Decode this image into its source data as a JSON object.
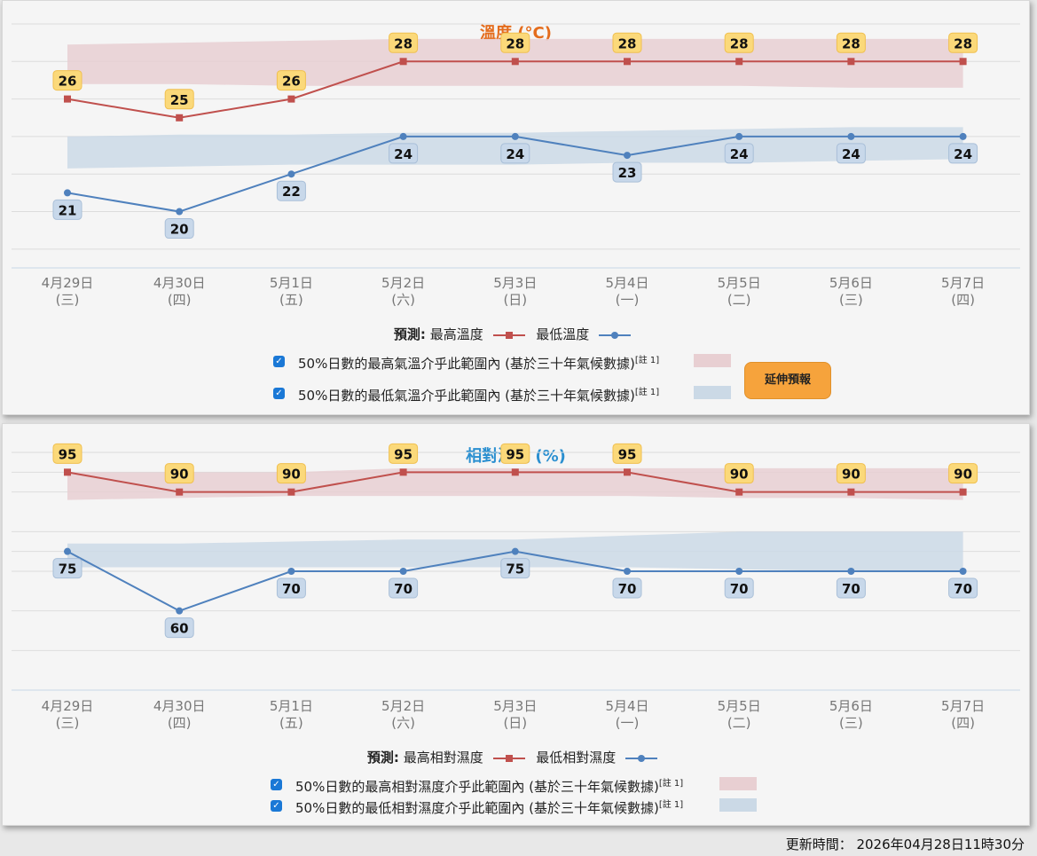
{
  "temperature": {
    "title": "溫度 (°C)",
    "legend": {
      "prefix": "預測:",
      "max_label": "最高溫度",
      "min_label": "最低溫度"
    },
    "notes": [
      {
        "text": "50%日數的最高氣溫介乎此範圍內 (基於三十年氣候數據)",
        "sup": "[註 1]"
      },
      {
        "text": "50%日數的最低氣溫介乎此範圍內 (基於三十年氣候數據)",
        "sup": "[註 1]"
      }
    ],
    "button_label": "延伸預報"
  },
  "humidity": {
    "title": "相對濕度 (%)",
    "legend": {
      "prefix": "預測:",
      "max_label": "最高相對濕度",
      "min_label": "最低相對濕度"
    },
    "notes": [
      {
        "text": "50%日數的最高相對濕度介乎此範圍內 (基於三十年氣候數據)",
        "sup": "[註 1]"
      },
      {
        "text": "50%日數的最低相對濕度介乎此範圍內 (基於三十年氣候數據)",
        "sup": "[註 1]"
      }
    ]
  },
  "colors": {
    "max": "#c0504d",
    "min": "#4f81bd",
    "max_band": "#e8cfd2",
    "min_band": "#cbd9e6",
    "max_label_bg": "#fbd97a",
    "min_label_bg": "#c8d8ea"
  },
  "updated": "更新時間： 2026年04月28日11時30分",
  "chart_data": [
    {
      "type": "line",
      "title": "溫度 (°C)",
      "categories": [
        "4月29日",
        "4月30日",
        "5月1日",
        "5月2日",
        "5月3日",
        "5月4日",
        "5月5日",
        "5月6日",
        "5月7日"
      ],
      "weekdays": [
        "(三)",
        "(四)",
        "(五)",
        "(六)",
        "(日)",
        "(一)",
        "(二)",
        "(三)",
        "(四)"
      ],
      "ylim": [
        17,
        30
      ],
      "grid": true,
      "series": [
        {
          "name": "最高溫度",
          "values": [
            26,
            25,
            26,
            28,
            28,
            28,
            28,
            28,
            28
          ]
        },
        {
          "name": "最低溫度",
          "values": [
            21,
            20,
            22,
            24,
            24,
            23,
            24,
            24,
            24
          ]
        }
      ],
      "bands": [
        {
          "upper": [
            28.9,
            29.0,
            29.1,
            29.2,
            29.2,
            29.2,
            29.2,
            29.2,
            29.2
          ],
          "lower": [
            26.8,
            26.8,
            26.7,
            26.7,
            26.7,
            26.7,
            26.7,
            26.6,
            26.6
          ]
        },
        {
          "upper": [
            24.0,
            24.1,
            24.1,
            24.2,
            24.2,
            24.3,
            24.4,
            24.5,
            24.5
          ],
          "lower": [
            22.3,
            22.4,
            22.5,
            22.5,
            22.5,
            22.6,
            22.6,
            22.7,
            22.8
          ]
        }
      ]
    },
    {
      "type": "line",
      "title": "相對濕度 (%)",
      "categories": [
        "4月29日",
        "4月30日",
        "5月1日",
        "5月2日",
        "5月3日",
        "5月4日",
        "5月5日",
        "5月6日",
        "5月7日"
      ],
      "weekdays": [
        "(三)",
        "(四)",
        "(五)",
        "(六)",
        "(日)",
        "(一)",
        "(二)",
        "(三)",
        "(四)"
      ],
      "ylim": [
        40,
        100
      ],
      "grid": true,
      "series": [
        {
          "name": "最高相對濕度",
          "values": [
            95,
            90,
            90,
            95,
            95,
            95,
            90,
            90,
            90
          ]
        },
        {
          "name": "最低相對濕度",
          "values": [
            75,
            60,
            70,
            70,
            75,
            70,
            70,
            70,
            70
          ]
        }
      ],
      "bands": [
        {
          "upper": [
            95,
            95,
            95,
            96,
            96,
            96,
            96,
            96,
            96
          ],
          "lower": [
            88,
            88.5,
            89,
            89,
            89,
            89,
            88.5,
            88.5,
            88
          ]
        },
        {
          "upper": [
            77,
            77,
            77.5,
            78,
            78,
            79,
            80,
            80,
            80
          ],
          "lower": [
            71,
            71,
            71,
            71,
            71,
            71,
            70.5,
            70,
            70
          ]
        }
      ]
    }
  ]
}
